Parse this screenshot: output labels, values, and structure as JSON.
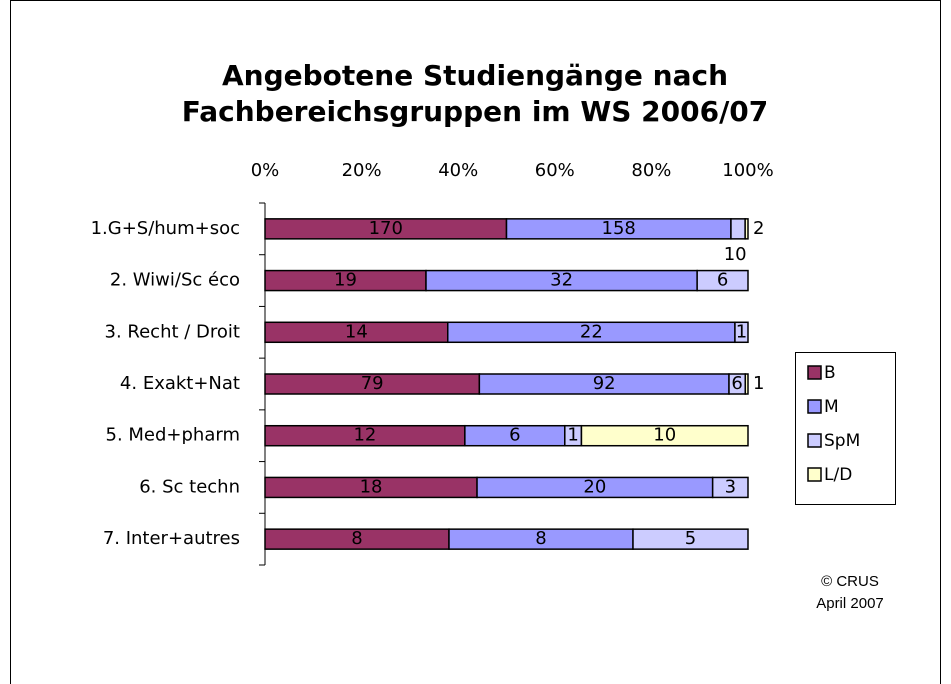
{
  "chart_data": {
    "type": "bar",
    "orientation": "horizontal",
    "stacking": "percent",
    "title": "Angebotene Studiengänge nach Fachbereichsgruppen im WS 2006/07",
    "categories": [
      "1.G+S/hum+soc",
      "2. Wiwi/Sc éco",
      "3. Recht / Droit",
      "4. Exakt+Nat",
      "5. Med+pharm",
      "6. Sc techn",
      "7. Inter+autres"
    ],
    "series": [
      {
        "name": "B",
        "color": "#993366",
        "values": [
          170,
          19,
          14,
          79,
          12,
          18,
          8
        ]
      },
      {
        "name": "M",
        "color": "#9999ff",
        "values": [
          158,
          32,
          22,
          92,
          6,
          20,
          8
        ]
      },
      {
        "name": "SpM",
        "color": "#ccccff",
        "values": [
          10,
          6,
          1,
          6,
          1,
          3,
          5
        ]
      },
      {
        "name": "L/D",
        "color": "#ffffcc",
        "values": [
          2,
          null,
          null,
          1,
          10,
          null,
          null
        ]
      }
    ],
    "xlim": [
      0,
      100
    ],
    "xticks": [
      {
        "value": 0,
        "label": "0%"
      },
      {
        "value": 20,
        "label": "20%"
      },
      {
        "value": 40,
        "label": "40%"
      },
      {
        "value": 60,
        "label": "60%"
      },
      {
        "value": 80,
        "label": "80%"
      },
      {
        "value": 100,
        "label": "100%"
      }
    ],
    "legend": "right",
    "annotations": [
      "© CRUS",
      "April 2007"
    ]
  }
}
